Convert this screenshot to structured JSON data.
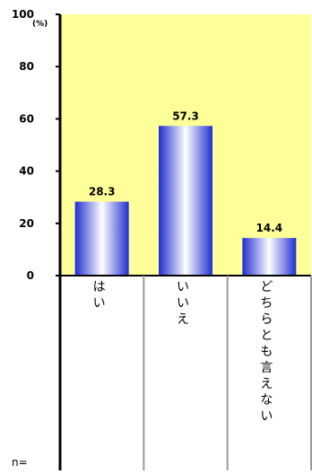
{
  "chart_data": {
    "type": "bar",
    "categories": [
      "はい",
      "いいえ",
      "どちらとも言えない"
    ],
    "values": [
      28.3,
      57.3,
      14.4
    ],
    "value_labels": [
      "28.3",
      "57.3",
      "14.4"
    ],
    "y_ticks": [
      "0",
      "20",
      "40",
      "60",
      "80",
      "100"
    ],
    "ylim": [
      0,
      100
    ],
    "y_unit": "(%)",
    "n_label": "n=",
    "grid": false,
    "colors": {
      "plot_background": "#FFFF99",
      "bar_edge": "#1F2FD0",
      "bar_center": "#FFFFFF",
      "axis": "#000000",
      "table_line": "#9A9A9A"
    }
  }
}
